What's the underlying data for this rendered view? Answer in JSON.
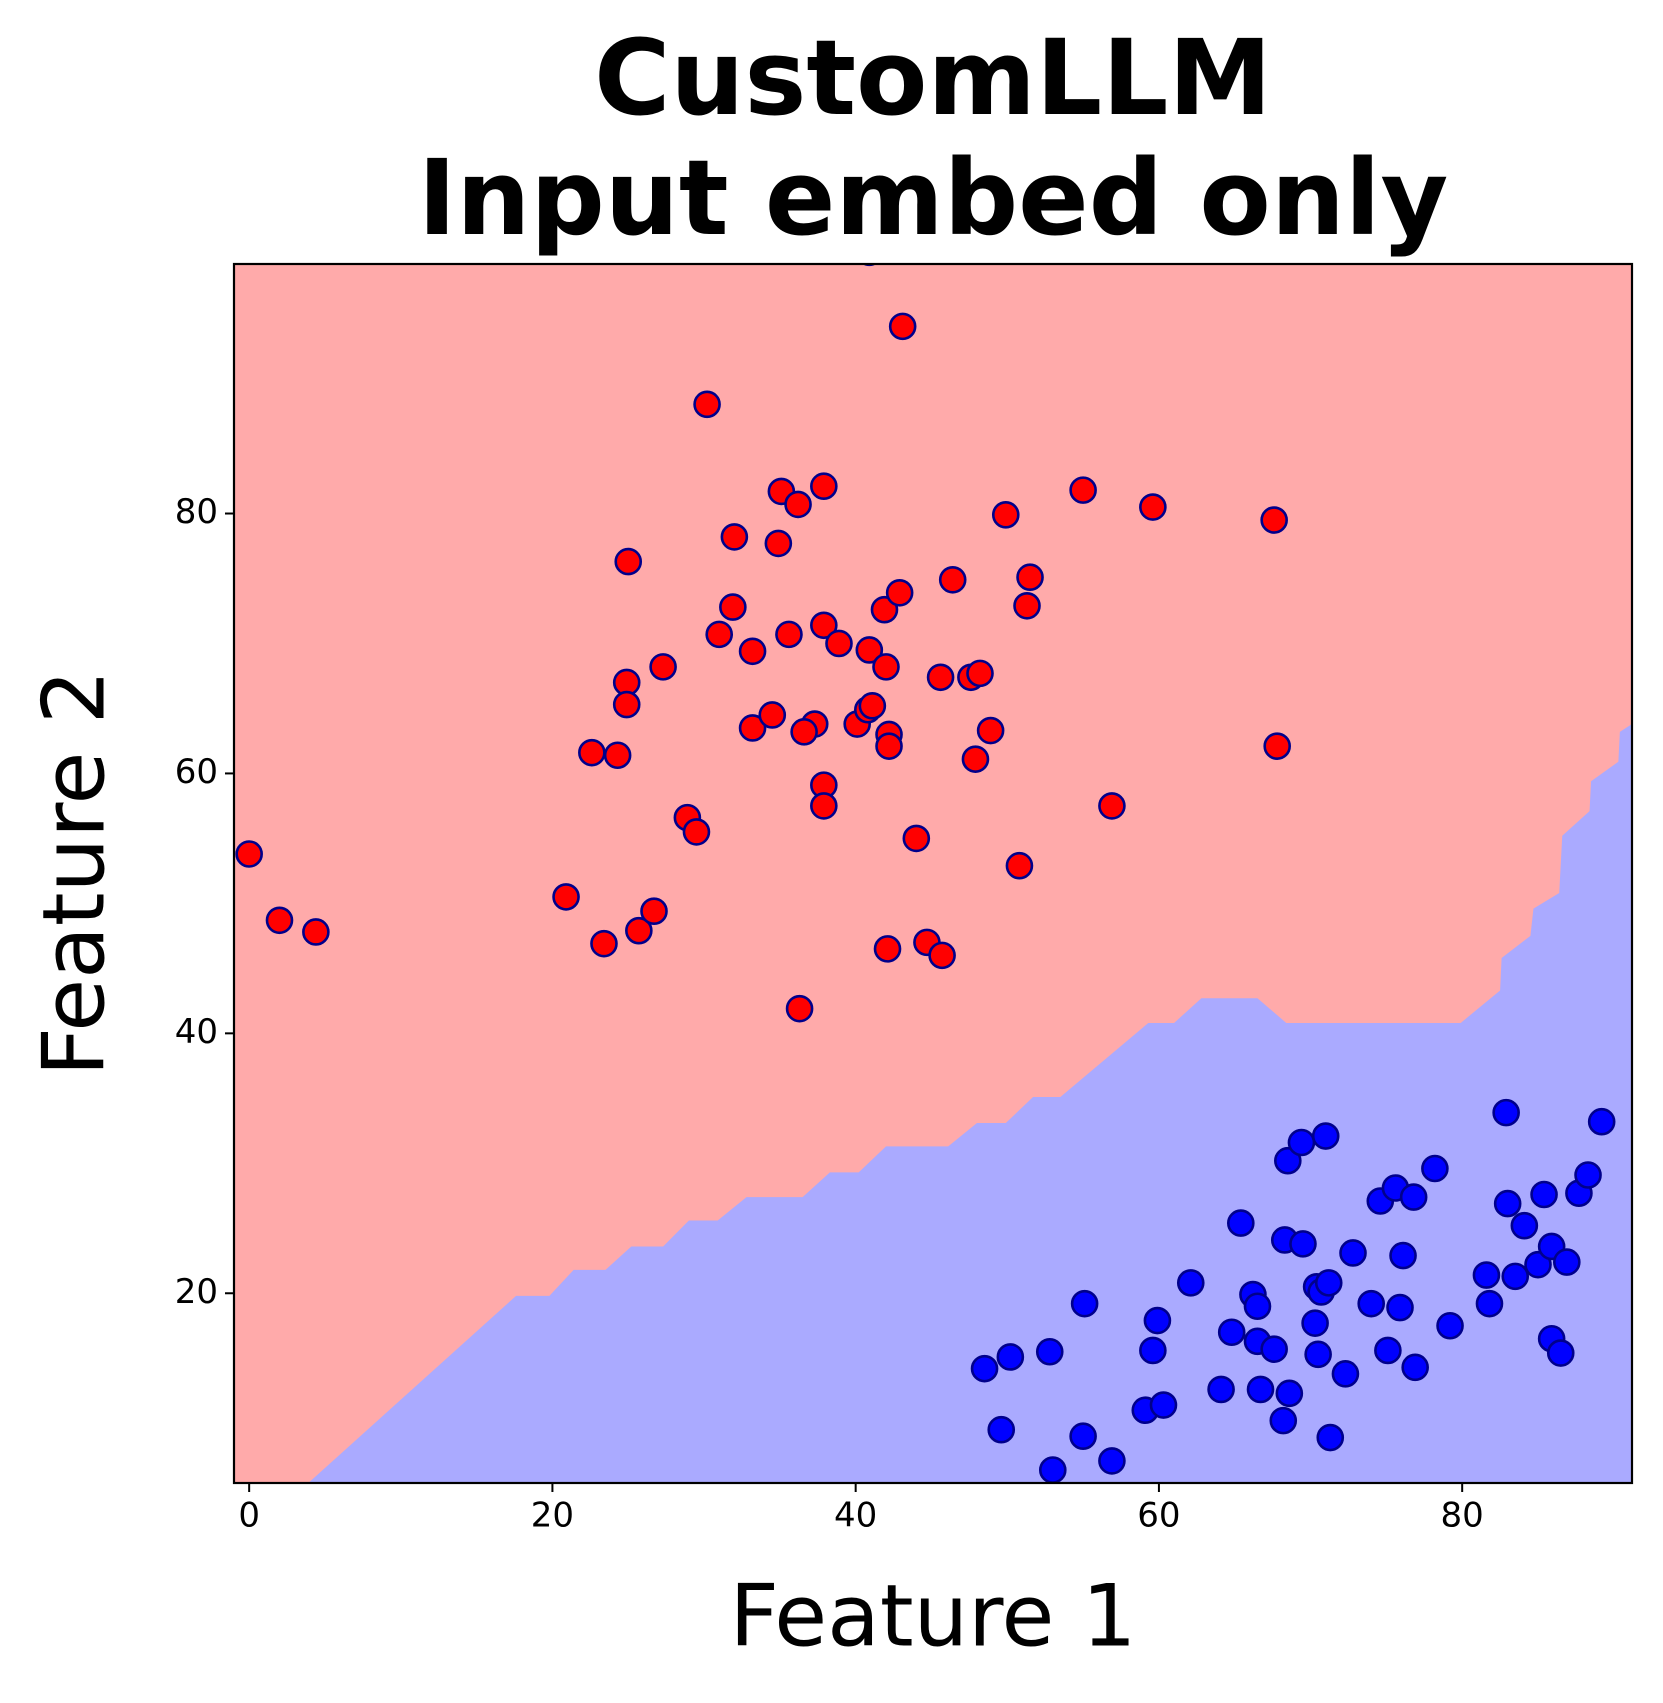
{
  "chart_data": {
    "type": "scatter",
    "title": "CustomLLM\nInput embed only",
    "x_label": "Feature 1",
    "y_label": "Feature 2",
    "xlim": [
      -1.0,
      91.2
    ],
    "ylim": [
      5.4,
      99.2
    ],
    "xticks": [
      0,
      20,
      40,
      60,
      80
    ],
    "yticks": [
      20,
      40,
      60,
      80
    ],
    "background_color": "#ffaaaa",
    "region": {
      "color": "#aaaaff",
      "x": [
        3.9,
        17.6,
        19.8,
        21.4,
        23.5,
        25.2,
        27.3,
        29.0,
        30.9,
        32.8,
        36.5,
        38.3,
        40.2,
        42.0,
        46.1,
        48.0,
        49.9,
        51.7,
        53.5,
        59.3,
        61.0,
        62.8,
        66.5,
        68.4,
        79.9,
        82.5,
        82.6,
        84.5,
        84.7,
        86.4,
        86.6,
        88.4,
        88.5,
        90.3,
        90.4,
        91.2,
        91.2
      ],
      "y": [
        5.4,
        19.8,
        19.8,
        21.8,
        21.8,
        23.6,
        23.6,
        25.6,
        25.6,
        27.4,
        27.4,
        29.3,
        29.3,
        31.3,
        31.3,
        33.1,
        33.1,
        35.1,
        35.1,
        40.8,
        40.8,
        42.7,
        42.7,
        40.8,
        40.8,
        43.3,
        45.8,
        47.5,
        49.6,
        50.8,
        55.2,
        57.1,
        59.4,
        60.9,
        63.2,
        63.8,
        5.4
      ]
    },
    "edge_color": "#00008b",
    "series": [
      {
        "color": "#ff0000",
        "x": [
          0.0,
          2.0,
          4.4,
          20.9,
          22.6,
          24.3,
          23.4,
          25.7,
          26.7,
          25.0,
          24.9,
          24.9,
          27.3,
          28.9,
          29.5,
          30.2,
          31.0,
          31.9,
          32.0,
          33.2,
          33.2,
          34.5,
          34.9,
          35.1,
          36.2,
          35.6,
          37.9,
          37.9,
          38.9,
          37.3,
          36.6,
          37.9,
          37.9,
          36.3,
          40.1,
          40.8,
          41.1,
          40.9,
          41.9,
          42.0,
          42.9,
          42.2,
          42.2,
          43.1,
          44.0,
          42.1,
          44.7,
          45.7,
          45.6,
          46.4,
          47.6,
          48.2,
          47.9,
          48.9,
          49.9,
          51.3,
          51.5,
          50.8,
          55.0,
          56.9,
          59.6,
          67.6,
          67.8,
          40.9
        ],
        "y": [
          53.8,
          48.7,
          47.8,
          50.5,
          61.6,
          61.4,
          46.9,
          47.9,
          49.4,
          76.3,
          67.0,
          65.3,
          68.2,
          56.6,
          55.5,
          88.4,
          70.7,
          72.8,
          78.2,
          69.4,
          63.5,
          64.5,
          77.7,
          81.7,
          80.7,
          70.7,
          82.1,
          71.4,
          70.0,
          63.8,
          63.2,
          59.1,
          57.5,
          41.9,
          63.8,
          64.9,
          65.2,
          69.5,
          72.6,
          68.2,
          73.9,
          63.0,
          62.1,
          94.4,
          55.0,
          46.5,
          47.0,
          46.0,
          67.4,
          74.9,
          67.4,
          67.7,
          61.1,
          63.3,
          79.9,
          72.9,
          75.1,
          52.9,
          81.8,
          57.5,
          80.5,
          79.5,
          62.1,
          100.1
        ]
      },
      {
        "color": "#0000ff",
        "x": [
          48.5,
          50.2,
          49.6,
          52.8,
          53.0,
          55.1,
          55.0,
          56.9,
          59.9,
          59.6,
          59.1,
          60.3,
          62.1,
          64.1,
          64.8,
          65.4,
          66.2,
          66.5,
          66.5,
          66.7,
          67.6,
          68.2,
          68.6,
          68.3,
          68.5,
          69.4,
          69.5,
          70.3,
          70.4,
          70.7,
          71.2,
          70.5,
          71.0,
          71.3,
          72.3,
          72.8,
          74.0,
          74.6,
          75.6,
          76.8,
          75.1,
          75.9,
          76.1,
          76.9,
          78.2,
          79.2,
          81.6,
          81.8,
          82.9,
          83.0,
          83.5,
          84.1,
          85.0,
          85.4,
          85.9,
          85.9,
          86.5,
          86.9,
          87.7,
          88.3,
          89.2
        ],
        "y": [
          14.2,
          15.1,
          9.5,
          15.5,
          6.4,
          19.2,
          9.0,
          7.1,
          17.9,
          15.6,
          11.0,
          11.4,
          20.8,
          12.6,
          17.0,
          25.4,
          19.9,
          19.0,
          16.3,
          12.6,
          15.7,
          10.2,
          12.3,
          24.1,
          30.2,
          31.6,
          23.8,
          17.7,
          20.5,
          20.1,
          20.8,
          15.3,
          32.1,
          8.9,
          13.8,
          23.1,
          19.2,
          27.1,
          28.1,
          27.4,
          15.6,
          18.9,
          22.9,
          14.3,
          29.6,
          17.5,
          21.4,
          19.2,
          33.9,
          26.9,
          21.3,
          25.2,
          22.2,
          27.6,
          23.6,
          16.5,
          15.4,
          22.4,
          27.7,
          29.1,
          33.2
        ]
      }
    ]
  }
}
